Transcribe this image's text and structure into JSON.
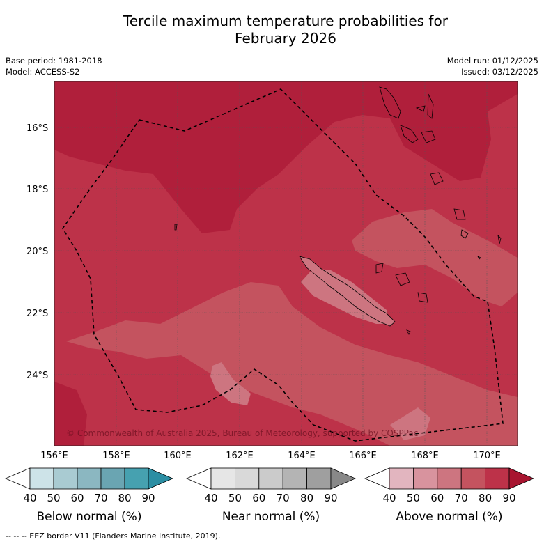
{
  "title_line1": "Tercile maximum temperature probabilities for",
  "title_line2": "February 2026",
  "meta": {
    "base_period": "Base period: 1981-2018",
    "model": "Model: ACCESS-S2",
    "model_run": "Model run: 01/12/2025",
    "issued": "Issued: 03/12/2025"
  },
  "map": {
    "lat_labels": [
      "16°S",
      "18°S",
      "20°S",
      "22°S",
      "24°S"
    ],
    "lon_labels": [
      "156°E",
      "158°E",
      "160°E",
      "162°E",
      "164°E",
      "166°E",
      "168°E",
      "170°E"
    ],
    "copyright": "© Commonwealth of Australia 2025, Bureau of Meteorology, supported by COSPPac"
  },
  "legends": [
    {
      "title": "Below normal (%)",
      "ticks": [
        "40",
        "50",
        "60",
        "70",
        "80",
        "90"
      ],
      "colors": [
        "#ffffff",
        "#cde3e8",
        "#a9cbd2",
        "#8bb7c1",
        "#6aa5b2",
        "#46a1b0",
        "#2b8ea3"
      ]
    },
    {
      "title": "Near normal (%)",
      "ticks": [
        "40",
        "50",
        "60",
        "70",
        "80",
        "90"
      ],
      "colors": [
        "#ffffff",
        "#e6e6e6",
        "#d9d9d9",
        "#cbcbcb",
        "#b4b4b4",
        "#9f9f9f",
        "#888888"
      ]
    },
    {
      "title": "Above normal (%)",
      "ticks": [
        "40",
        "50",
        "60",
        "70",
        "80",
        "90"
      ],
      "colors": [
        "#ffffff",
        "#e2b5bf",
        "#d8939e",
        "#cd7580",
        "#c4535f",
        "#bd3249",
        "#a81530"
      ]
    }
  ],
  "footer": "--  --  -- EEZ border V11 (Flanders Marine Institute, 2019)."
}
